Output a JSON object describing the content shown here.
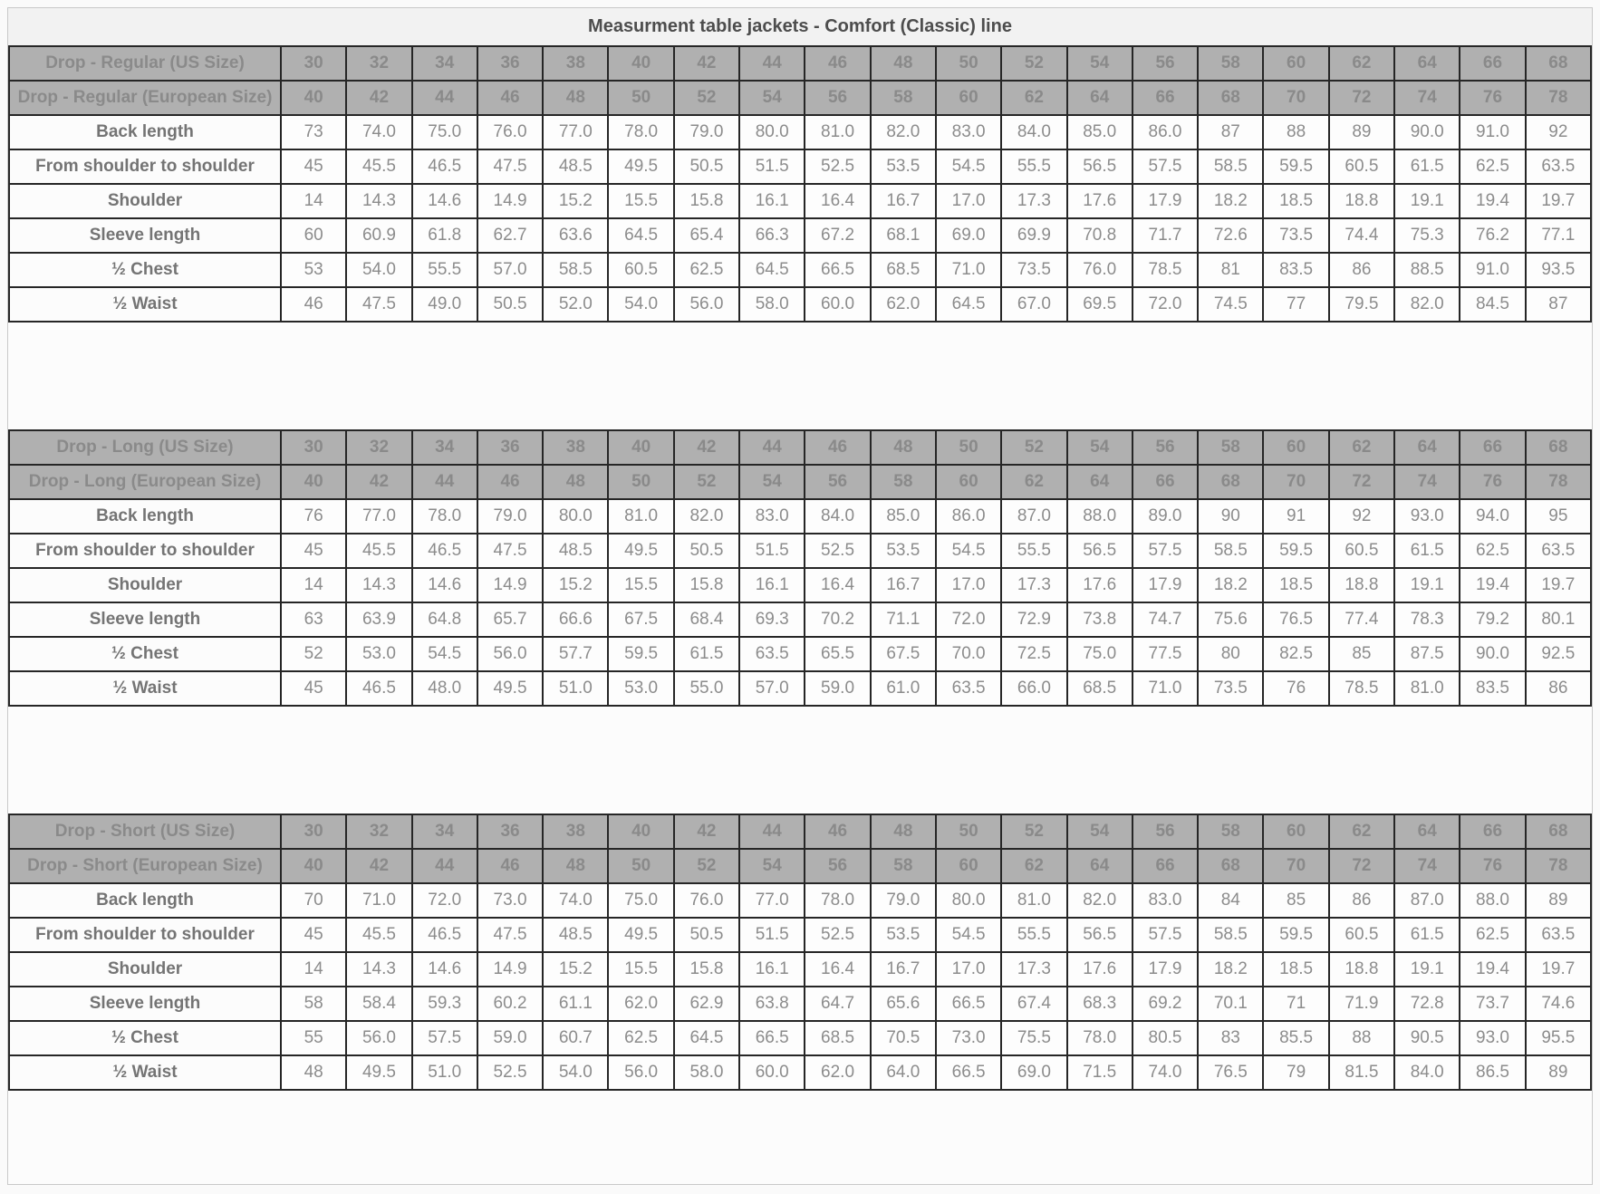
{
  "page_title": "Measurment table jackets - Comfort (Classic) line",
  "us_sizes": [
    "30",
    "32",
    "34",
    "36",
    "38",
    "40",
    "42",
    "44",
    "46",
    "48",
    "50",
    "52",
    "54",
    "56",
    "58",
    "60",
    "62",
    "64",
    "66",
    "68"
  ],
  "eu_sizes": [
    "40",
    "42",
    "44",
    "46",
    "48",
    "50",
    "52",
    "54",
    "56",
    "58",
    "60",
    "62",
    "64",
    "66",
    "68",
    "70",
    "72",
    "74",
    "76",
    "78"
  ],
  "sections": [
    {
      "id": "regular",
      "us_label": "Drop - Regular (US Size)",
      "eu_label": "Drop - Regular (European Size)",
      "rows": [
        {
          "label": "Back length",
          "values": [
            "73",
            "74.0",
            "75.0",
            "76.0",
            "77.0",
            "78.0",
            "79.0",
            "80.0",
            "81.0",
            "82.0",
            "83.0",
            "84.0",
            "85.0",
            "86.0",
            "87",
            "88",
            "89",
            "90.0",
            "91.0",
            "92"
          ]
        },
        {
          "label": "From shoulder to shoulder",
          "values": [
            "45",
            "45.5",
            "46.5",
            "47.5",
            "48.5",
            "49.5",
            "50.5",
            "51.5",
            "52.5",
            "53.5",
            "54.5",
            "55.5",
            "56.5",
            "57.5",
            "58.5",
            "59.5",
            "60.5",
            "61.5",
            "62.5",
            "63.5"
          ]
        },
        {
          "label": "Shoulder",
          "values": [
            "14",
            "14.3",
            "14.6",
            "14.9",
            "15.2",
            "15.5",
            "15.8",
            "16.1",
            "16.4",
            "16.7",
            "17.0",
            "17.3",
            "17.6",
            "17.9",
            "18.2",
            "18.5",
            "18.8",
            "19.1",
            "19.4",
            "19.7"
          ]
        },
        {
          "label": "Sleeve length",
          "values": [
            "60",
            "60.9",
            "61.8",
            "62.7",
            "63.6",
            "64.5",
            "65.4",
            "66.3",
            "67.2",
            "68.1",
            "69.0",
            "69.9",
            "70.8",
            "71.7",
            "72.6",
            "73.5",
            "74.4",
            "75.3",
            "76.2",
            "77.1"
          ]
        },
        {
          "label": "½ Chest",
          "values": [
            "53",
            "54.0",
            "55.5",
            "57.0",
            "58.5",
            "60.5",
            "62.5",
            "64.5",
            "66.5",
            "68.5",
            "71.0",
            "73.5",
            "76.0",
            "78.5",
            "81",
            "83.5",
            "86",
            "88.5",
            "91.0",
            "93.5"
          ]
        },
        {
          "label": "½ Waist",
          "values": [
            "46",
            "47.5",
            "49.0",
            "50.5",
            "52.0",
            "54.0",
            "56.0",
            "58.0",
            "60.0",
            "62.0",
            "64.5",
            "67.0",
            "69.5",
            "72.0",
            "74.5",
            "77",
            "79.5",
            "82.0",
            "84.5",
            "87"
          ]
        }
      ]
    },
    {
      "id": "long",
      "us_label": "Drop - Long (US Size)",
      "eu_label": "Drop - Long (European Size)",
      "rows": [
        {
          "label": "Back length",
          "values": [
            "76",
            "77.0",
            "78.0",
            "79.0",
            "80.0",
            "81.0",
            "82.0",
            "83.0",
            "84.0",
            "85.0",
            "86.0",
            "87.0",
            "88.0",
            "89.0",
            "90",
            "91",
            "92",
            "93.0",
            "94.0",
            "95"
          ]
        },
        {
          "label": "From shoulder to shoulder",
          "values": [
            "45",
            "45.5",
            "46.5",
            "47.5",
            "48.5",
            "49.5",
            "50.5",
            "51.5",
            "52.5",
            "53.5",
            "54.5",
            "55.5",
            "56.5",
            "57.5",
            "58.5",
            "59.5",
            "60.5",
            "61.5",
            "62.5",
            "63.5"
          ]
        },
        {
          "label": "Shoulder",
          "values": [
            "14",
            "14.3",
            "14.6",
            "14.9",
            "15.2",
            "15.5",
            "15.8",
            "16.1",
            "16.4",
            "16.7",
            "17.0",
            "17.3",
            "17.6",
            "17.9",
            "18.2",
            "18.5",
            "18.8",
            "19.1",
            "19.4",
            "19.7"
          ]
        },
        {
          "label": "Sleeve length",
          "values": [
            "63",
            "63.9",
            "64.8",
            "65.7",
            "66.6",
            "67.5",
            "68.4",
            "69.3",
            "70.2",
            "71.1",
            "72.0",
            "72.9",
            "73.8",
            "74.7",
            "75.6",
            "76.5",
            "77.4",
            "78.3",
            "79.2",
            "80.1"
          ]
        },
        {
          "label": "½ Chest",
          "values": [
            "52",
            "53.0",
            "54.5",
            "56.0",
            "57.7",
            "59.5",
            "61.5",
            "63.5",
            "65.5",
            "67.5",
            "70.0",
            "72.5",
            "75.0",
            "77.5",
            "80",
            "82.5",
            "85",
            "87.5",
            "90.0",
            "92.5"
          ]
        },
        {
          "label": "½ Waist",
          "values": [
            "45",
            "46.5",
            "48.0",
            "49.5",
            "51.0",
            "53.0",
            "55.0",
            "57.0",
            "59.0",
            "61.0",
            "63.5",
            "66.0",
            "68.5",
            "71.0",
            "73.5",
            "76",
            "78.5",
            "81.0",
            "83.5",
            "86"
          ]
        }
      ]
    },
    {
      "id": "short",
      "us_label": "Drop - Short (US Size)",
      "eu_label": "Drop - Short (European Size)",
      "rows": [
        {
          "label": "Back length",
          "values": [
            "70",
            "71.0",
            "72.0",
            "73.0",
            "74.0",
            "75.0",
            "76.0",
            "77.0",
            "78.0",
            "79.0",
            "80.0",
            "81.0",
            "82.0",
            "83.0",
            "84",
            "85",
            "86",
            "87.0",
            "88.0",
            "89"
          ]
        },
        {
          "label": "From shoulder to shoulder",
          "values": [
            "45",
            "45.5",
            "46.5",
            "47.5",
            "48.5",
            "49.5",
            "50.5",
            "51.5",
            "52.5",
            "53.5",
            "54.5",
            "55.5",
            "56.5",
            "57.5",
            "58.5",
            "59.5",
            "60.5",
            "61.5",
            "62.5",
            "63.5"
          ]
        },
        {
          "label": "Shoulder",
          "values": [
            "14",
            "14.3",
            "14.6",
            "14.9",
            "15.2",
            "15.5",
            "15.8",
            "16.1",
            "16.4",
            "16.7",
            "17.0",
            "17.3",
            "17.6",
            "17.9",
            "18.2",
            "18.5",
            "18.8",
            "19.1",
            "19.4",
            "19.7"
          ]
        },
        {
          "label": "Sleeve length",
          "values": [
            "58",
            "58.4",
            "59.3",
            "60.2",
            "61.1",
            "62.0",
            "62.9",
            "63.8",
            "64.7",
            "65.6",
            "66.5",
            "67.4",
            "68.3",
            "69.2",
            "70.1",
            "71",
            "71.9",
            "72.8",
            "73.7",
            "74.6"
          ]
        },
        {
          "label": "½ Chest",
          "values": [
            "55",
            "56.0",
            "57.5",
            "59.0",
            "60.7",
            "62.5",
            "64.5",
            "66.5",
            "68.5",
            "70.5",
            "73.0",
            "75.5",
            "78.0",
            "80.5",
            "83",
            "85.5",
            "88",
            "90.5",
            "93.0",
            "95.5"
          ]
        },
        {
          "label": "½ Waist",
          "values": [
            "48",
            "49.5",
            "51.0",
            "52.5",
            "54.0",
            "56.0",
            "58.0",
            "60.0",
            "62.0",
            "64.0",
            "66.5",
            "69.0",
            "71.5",
            "74.0",
            "76.5",
            "79",
            "81.5",
            "84.0",
            "86.5",
            "89"
          ]
        }
      ]
    }
  ],
  "colors": {
    "header_bg": "#b0b0b0",
    "header_text": "#8a8a8a",
    "border": "#262626",
    "data_text": "#8c8c8c",
    "label_text": "#747474",
    "title_text": "#4d4d4d"
  }
}
